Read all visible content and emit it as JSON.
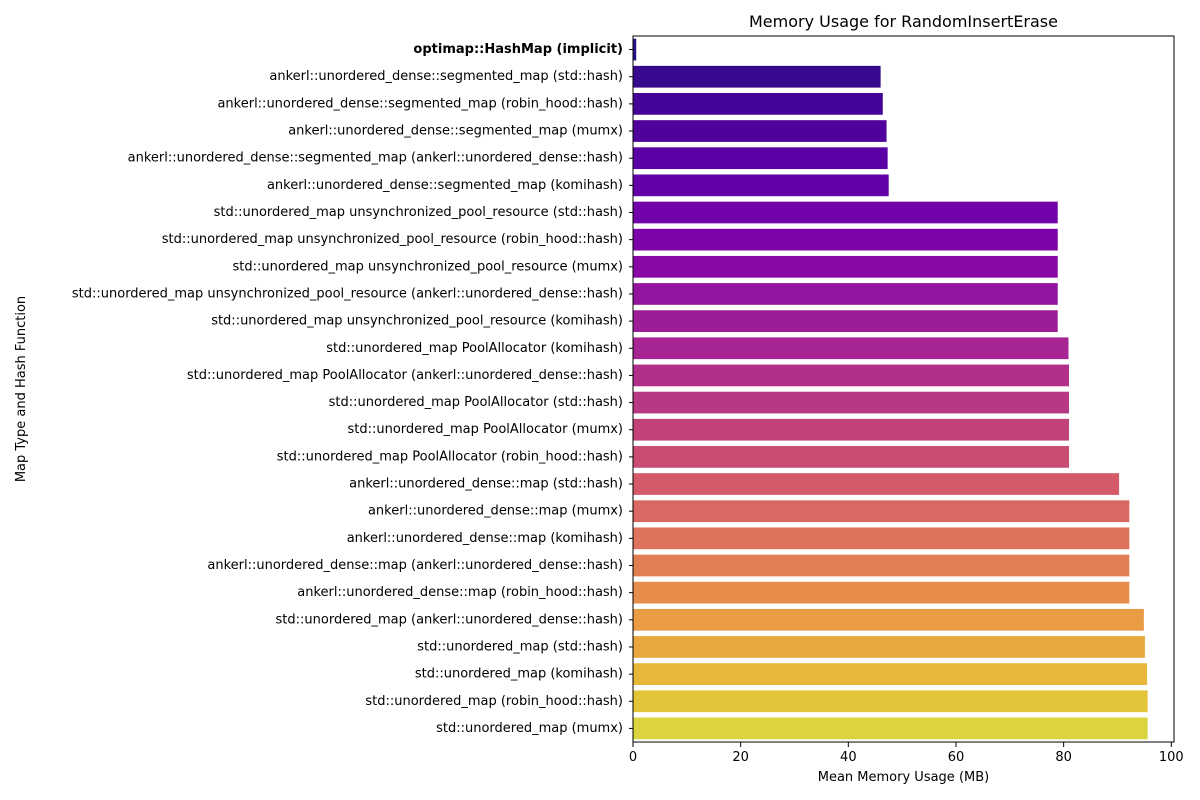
{
  "chart_data": {
    "type": "bar",
    "orientation": "horizontal",
    "title": "Memory Usage for RandomInsertErase",
    "xlabel": "Mean Memory Usage (MB)",
    "ylabel": "Map Type and Hash Function",
    "xlim": [
      0,
      100.5
    ],
    "xticks": [
      "0",
      "20",
      "40",
      "60",
      "80",
      "100"
    ],
    "grid": false,
    "colormap": "plasma",
    "highlighted_category": "optimap::HashMap (implicit)",
    "categories": [
      "optimap::HashMap (implicit)",
      "ankerl::unordered_dense::segmented_map (std::hash)",
      "ankerl::unordered_dense::segmented_map (robin_hood::hash)",
      "ankerl::unordered_dense::segmented_map (mumx)",
      "ankerl::unordered_dense::segmented_map (ankerl::unordered_dense::hash)",
      "ankerl::unordered_dense::segmented_map (komihash)",
      "std::unordered_map unsynchronized_pool_resource (std::hash)",
      "std::unordered_map unsynchronized_pool_resource (robin_hood::hash)",
      "std::unordered_map unsynchronized_pool_resource (mumx)",
      "std::unordered_map unsynchronized_pool_resource (ankerl::unordered_dense::hash)",
      "std::unordered_map unsynchronized_pool_resource (komihash)",
      "std::unordered_map PoolAllocator (komihash)",
      "std::unordered_map PoolAllocator (ankerl::unordered_dense::hash)",
      "std::unordered_map PoolAllocator (std::hash)",
      "std::unordered_map PoolAllocator (mumx)",
      "std::unordered_map PoolAllocator (robin_hood::hash)",
      "ankerl::unordered_dense::map (std::hash)",
      "ankerl::unordered_dense::map (mumx)",
      "ankerl::unordered_dense::map (komihash)",
      "ankerl::unordered_dense::map (ankerl::unordered_dense::hash)",
      "ankerl::unordered_dense::map (robin_hood::hash)",
      "std::unordered_map (ankerl::unordered_dense::hash)",
      "std::unordered_map (std::hash)",
      "std::unordered_map (komihash)",
      "std::unordered_map (robin_hood::hash)",
      "std::unordered_map (mumx)"
    ],
    "values": [
      0.6,
      46.0,
      46.4,
      47.1,
      47.3,
      47.5,
      78.9,
      78.9,
      78.9,
      78.9,
      78.9,
      80.9,
      81.0,
      81.0,
      81.0,
      81.0,
      90.3,
      92.2,
      92.2,
      92.2,
      92.2,
      94.9,
      95.1,
      95.5,
      95.6,
      95.6
    ],
    "colors": [
      "#2d0f8a",
      "#37098f",
      "#440497",
      "#4f029c",
      "#5a01a5",
      "#6400a7",
      "#7102a9",
      "#7b03a8",
      "#8808a6",
      "#93149f",
      "#9d1d98",
      "#a72592",
      "#b0308a",
      "#b83983",
      "#c1437a",
      "#c94d72",
      "#d45a6a",
      "#d96862",
      "#de735b",
      "#e27e54",
      "#e68d4b",
      "#e99c43",
      "#e9a83d",
      "#e8b63a",
      "#e3c53a",
      "#dbd43e"
    ]
  }
}
